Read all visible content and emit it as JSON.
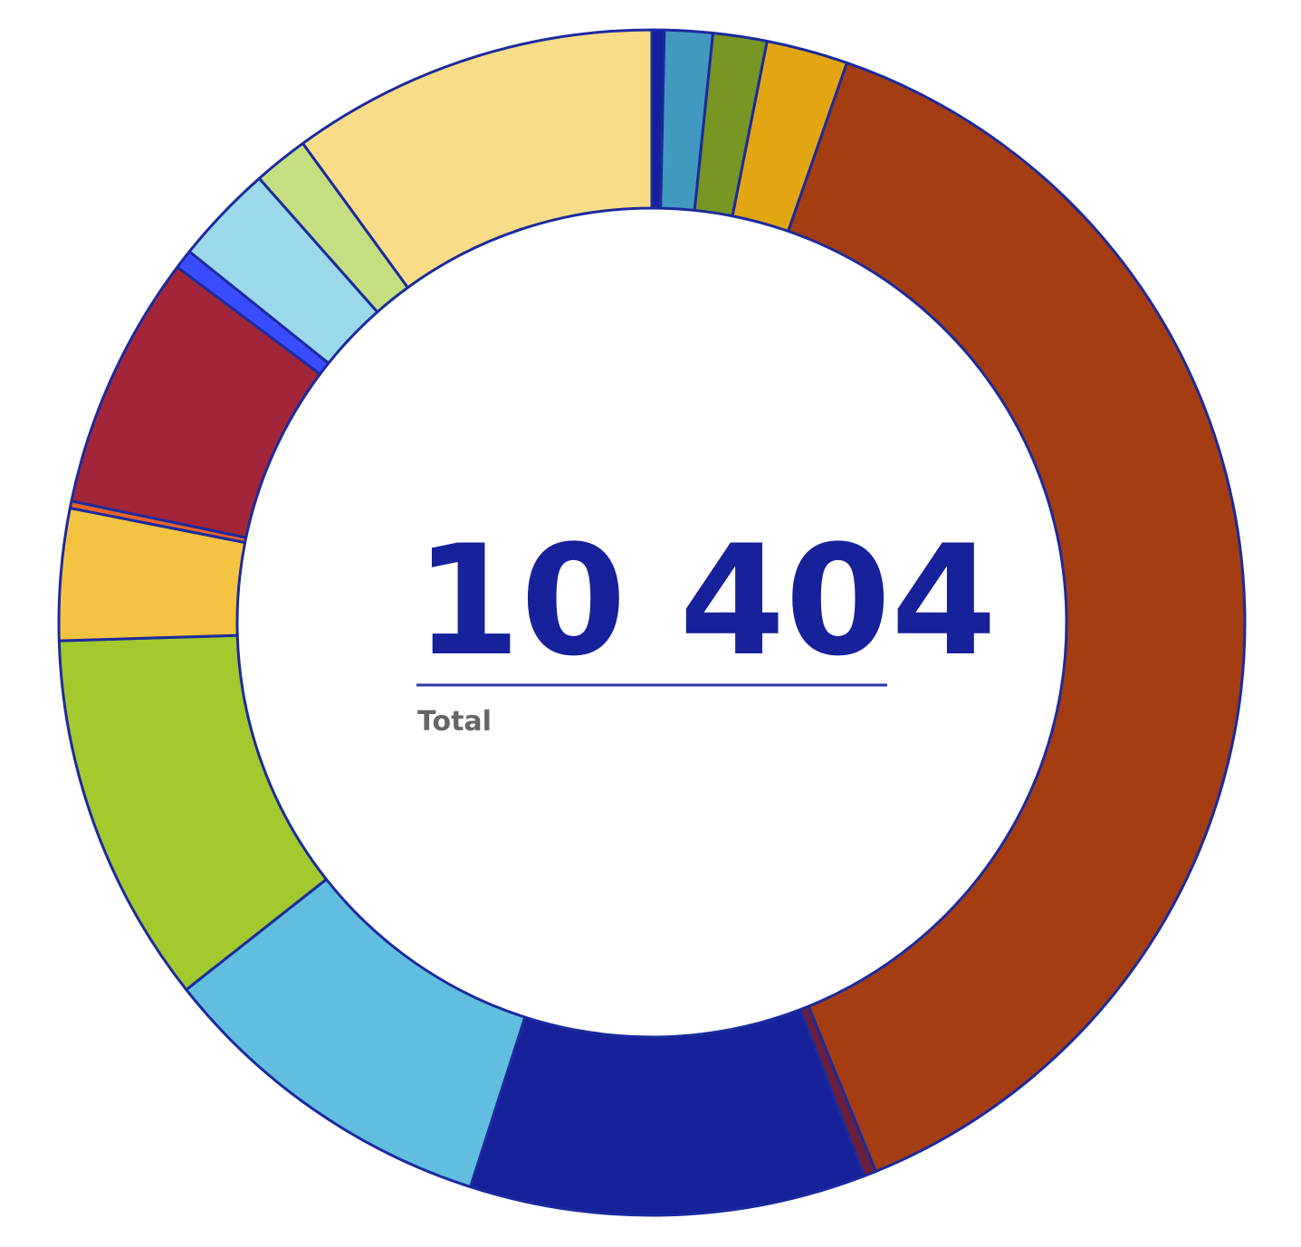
{
  "chart_data": {
    "type": "donut",
    "values": [
      35,
      136,
      153,
      231,
      4006,
      35,
      1121,
      980,
      1055,
      373,
      20,
      723,
      55,
      283,
      156,
      1042
    ],
    "colors": [
      "#16209a",
      "#4299bf",
      "#779623",
      "#e3a613",
      "#a53d12",
      "#6b1f3a",
      "#16219a",
      "#62bedf",
      "#a2c92d",
      "#f5c342",
      "#e8622a",
      "#a32539",
      "#3a4cff",
      "#9bd9ea",
      "#c4df7f",
      "#f8dc87"
    ],
    "total": {
      "value": 10404,
      "label": "10 404"
    },
    "total_caption": "Total"
  }
}
